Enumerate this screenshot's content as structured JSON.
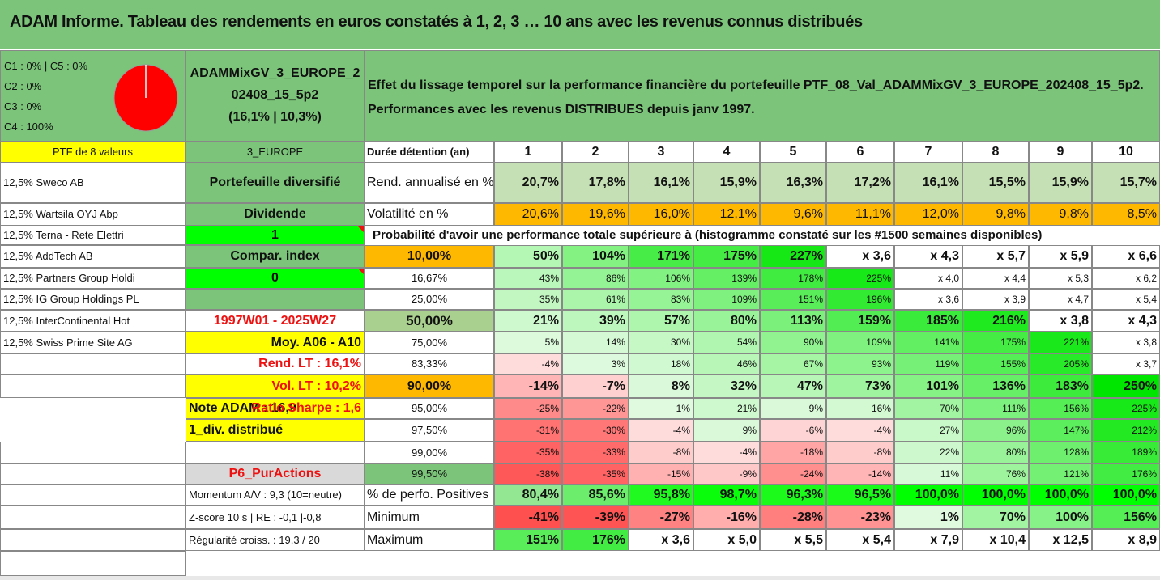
{
  "title": "ADAM Informe. Tableau des rendements en euros constatés à 1, 2, 3 … 10 ans avec les revenus connus distribués",
  "composition": {
    "lines": [
      "C1 : 0% | C5 : 0%",
      "C2 : 0%",
      "C3 : 0%",
      "C4 : 100%"
    ],
    "pie_color": "#ff0000"
  },
  "portfolio_name": {
    "line1": "ADAMMixGV_3_EUROPE_2",
    "line2": "02408_15_5p2",
    "line3": "(16,1% | 10,3%)"
  },
  "description": {
    "line1": "Effet du lissage temporel sur la performance financière du portefeuille PTF_08_Val_ADAMMixGV_3_EUROPE_202408_15_5p2.",
    "line2": "Performances avec les revenus DISTRIBUES depuis janv 1997."
  },
  "left_col": {
    "header": "PTF de 8 valeurs",
    "holdings": [
      "12,5% Sweco AB",
      "12,5% Wartsila OYJ Abp",
      "12,5% Terna - Rete Elettri",
      "12,5% AddTech AB",
      "12,5% Partners Group Holdi",
      "12,5% IG Group Holdings PL",
      "12,5% InterContinental Hot",
      "12,5% Swiss Prime Site AG"
    ],
    "note": "Note ADAM : 16,9",
    "div": "1_div. distribué"
  },
  "mid_col": {
    "zone": "3_EUROPE",
    "type": "Portefeuille diversifié",
    "dividend_label": "Dividende",
    "dividend_value": "1",
    "compar_label": "Compar. index",
    "compar_value": "0",
    "period": "1997W01 - 2025W27",
    "moy": "Moy. A06 - A10",
    "rend_lt": "Rend. LT : 16,1%",
    "vol_lt": "Vol. LT : 10,2%",
    "sharpe": "Ratio Sharpe : 1,6",
    "strategy": "P6_PurActions",
    "momentum": "Momentum A/V : 9,3 (10=neutre)",
    "zscore": "Z-score 10 s | RE : -0,1 |-0,8",
    "regularite": "Régularité croiss. : 19,3 / 20"
  },
  "table": {
    "duration_label": "Durée détention (an)",
    "years": [
      "1",
      "2",
      "3",
      "4",
      "5",
      "6",
      "7",
      "8",
      "9",
      "10"
    ],
    "rend_label": "Rend. annualisé en %",
    "rend": [
      "20,7%",
      "17,8%",
      "16,1%",
      "15,9%",
      "16,3%",
      "17,2%",
      "16,1%",
      "15,5%",
      "15,9%",
      "15,7%"
    ],
    "vol_label": "Volatilité en %",
    "vol": [
      "20,6%",
      "19,6%",
      "16,0%",
      "12,1%",
      "9,6%",
      "11,1%",
      "12,0%",
      "9,8%",
      "9,8%",
      "8,5%"
    ],
    "prob_title": "Probabilité d'avoir une performance totale supérieure à (histogramme constaté sur les #1500 semaines disponibles)",
    "prob_rows": [
      {
        "p": "10,00%",
        "v": [
          "50%",
          "104%",
          "171%",
          "175%",
          "227%",
          "x 3,6",
          "x 4,3",
          "x 5,7",
          "x 5,9",
          "x 6,6"
        ]
      },
      {
        "p": "16,67%",
        "v": [
          "43%",
          "86%",
          "106%",
          "139%",
          "178%",
          "225%",
          "x 4,0",
          "x 4,4",
          "x 5,3",
          "x 6,2"
        ]
      },
      {
        "p": "25,00%",
        "v": [
          "35%",
          "61%",
          "83%",
          "109%",
          "151%",
          "196%",
          "x 3,6",
          "x 3,9",
          "x 4,7",
          "x 5,4"
        ]
      },
      {
        "p": "50,00%",
        "v": [
          "21%",
          "39%",
          "57%",
          "80%",
          "113%",
          "159%",
          "185%",
          "216%",
          "x 3,8",
          "x 4,3"
        ]
      },
      {
        "p": "75,00%",
        "v": [
          "5%",
          "14%",
          "30%",
          "54%",
          "90%",
          "109%",
          "141%",
          "175%",
          "221%",
          "x 3,8"
        ]
      },
      {
        "p": "83,33%",
        "v": [
          "-4%",
          "3%",
          "18%",
          "46%",
          "67%",
          "93%",
          "119%",
          "155%",
          "205%",
          "x 3,7"
        ]
      },
      {
        "p": "90,00%",
        "v": [
          "-14%",
          "-7%",
          "8%",
          "32%",
          "47%",
          "73%",
          "101%",
          "136%",
          "183%",
          "250%"
        ]
      },
      {
        "p": "95,00%",
        "v": [
          "-25%",
          "-22%",
          "1%",
          "21%",
          "9%",
          "16%",
          "70%",
          "111%",
          "156%",
          "225%"
        ]
      },
      {
        "p": "97,50%",
        "v": [
          "-31%",
          "-30%",
          "-4%",
          "9%",
          "-6%",
          "-4%",
          "27%",
          "96%",
          "147%",
          "212%"
        ]
      },
      {
        "p": "99,00%",
        "v": [
          "-35%",
          "-33%",
          "-8%",
          "-4%",
          "-18%",
          "-8%",
          "22%",
          "80%",
          "128%",
          "189%"
        ]
      },
      {
        "p": "99,50%",
        "v": [
          "-38%",
          "-35%",
          "-15%",
          "-9%",
          "-24%",
          "-14%",
          "11%",
          "76%",
          "121%",
          "176%"
        ]
      }
    ],
    "pos_label": "% de perfo. Positives",
    "pos": [
      "80,4%",
      "85,6%",
      "95,8%",
      "98,7%",
      "96,3%",
      "96,5%",
      "100,0%",
      "100,0%",
      "100,0%",
      "100,0%"
    ],
    "min_label": "Minimum",
    "min": [
      "-41%",
      "-39%",
      "-27%",
      "-16%",
      "-28%",
      "-23%",
      "1%",
      "70%",
      "100%",
      "156%"
    ],
    "max_label": "Maximum",
    "max": [
      "151%",
      "176%",
      "x 3,6",
      "x 5,0",
      "x 5,5",
      "x 5,4",
      "x 7,9",
      "x 10,4",
      "x 12,5",
      "x 8,9"
    ]
  }
}
